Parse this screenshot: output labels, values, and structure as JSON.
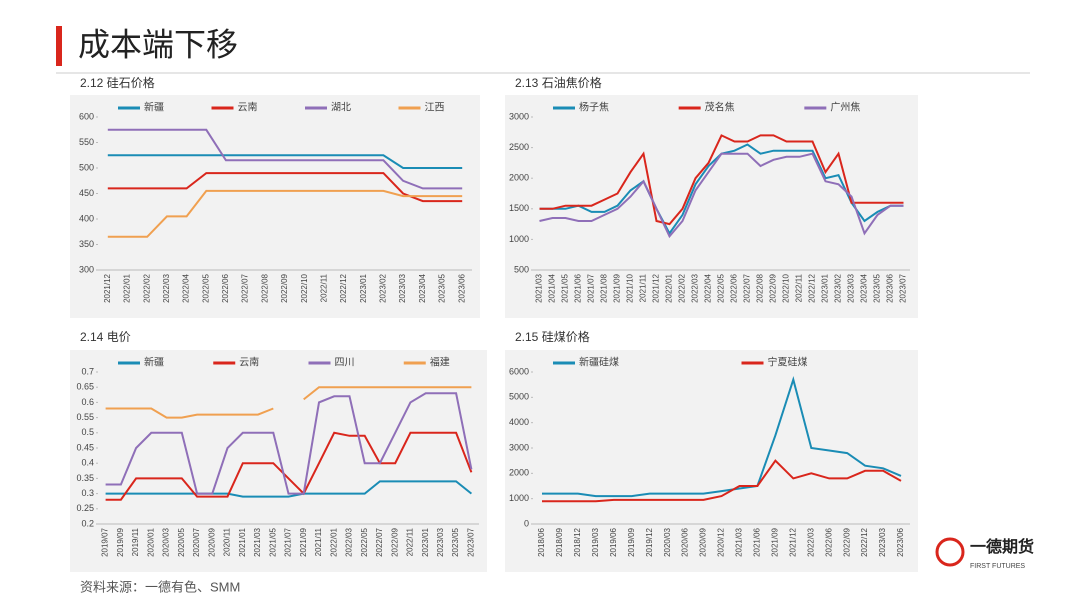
{
  "header": {
    "title": "成本端下移"
  },
  "source": "资料来源：一德有色、SMM",
  "logo": {
    "name": "一德期货",
    "english": "FIRST FUTURES"
  },
  "chart_data": [
    {
      "type": "line",
      "title": "2.12 硅石价格",
      "categories": [
        "2021/12",
        "2022/01",
        "2022/02",
        "2022/03",
        "2022/04",
        "2022/05",
        "2022/06",
        "2022/07",
        "2022/08",
        "2022/09",
        "2022/10",
        "2022/11",
        "2022/12",
        "2023/01",
        "2023/02",
        "2023/03",
        "2023/04",
        "2023/05",
        "2023/06"
      ],
      "ylim": [
        300,
        600
      ],
      "yticks": [
        300,
        350,
        400,
        450,
        500,
        550,
        600
      ],
      "series": [
        {
          "name": "新疆",
          "color": "#1a8cb5",
          "values": [
            525,
            525,
            525,
            525,
            525,
            525,
            525,
            525,
            525,
            525,
            525,
            525,
            525,
            525,
            525,
            500,
            500,
            500,
            500
          ]
        },
        {
          "name": "云南",
          "color": "#d9261c",
          "values": [
            460,
            460,
            460,
            460,
            460,
            490,
            490,
            490,
            490,
            490,
            490,
            490,
            490,
            490,
            490,
            450,
            435,
            435,
            435
          ]
        },
        {
          "name": "湖北",
          "color": "#8f6fb8",
          "values": [
            575,
            575,
            575,
            575,
            575,
            575,
            515,
            515,
            515,
            515,
            515,
            515,
            515,
            515,
            515,
            475,
            460,
            460,
            460
          ]
        },
        {
          "name": "江西",
          "color": "#f0a050",
          "values": [
            365,
            365,
            365,
            405,
            405,
            455,
            455,
            455,
            455,
            455,
            455,
            455,
            455,
            455,
            455,
            445,
            445,
            445,
            445
          ]
        }
      ]
    },
    {
      "type": "line",
      "title": "2.13 石油焦价格",
      "categories": [
        "2021/03",
        "2021/04",
        "2021/05",
        "2021/06",
        "2021/07",
        "2021/08",
        "2021/09",
        "2021/10",
        "2021/11",
        "2021/12",
        "2022/01",
        "2022/02",
        "2022/03",
        "2022/04",
        "2022/05",
        "2022/06",
        "2022/07",
        "2022/08",
        "2022/09",
        "2022/10",
        "2022/11",
        "2022/12",
        "2023/01",
        "2023/02",
        "2023/03",
        "2023/04",
        "2023/05",
        "2023/06",
        "2023/07"
      ],
      "ylim": [
        500,
        3000
      ],
      "yticks": [
        500,
        1000,
        1500,
        2000,
        2500,
        3000
      ],
      "series": [
        {
          "name": "杨子焦",
          "color": "#1a8cb5",
          "values": [
            1500,
            1500,
            1500,
            1550,
            1450,
            1450,
            1550,
            1800,
            1950,
            1500,
            1100,
            1400,
            1900,
            2200,
            2400,
            2450,
            2550,
            2400,
            2450,
            2450,
            2450,
            2450,
            2000,
            2050,
            1600,
            1300,
            1450,
            1550,
            1550
          ]
        },
        {
          "name": "茂名焦",
          "color": "#d9261c",
          "values": [
            1500,
            1500,
            1550,
            1550,
            1550,
            1650,
            1750,
            2100,
            2400,
            1300,
            1250,
            1500,
            2000,
            2250,
            2700,
            2600,
            2600,
            2700,
            2700,
            2600,
            2600,
            2600,
            2100,
            2400,
            1600,
            1600,
            1600,
            1600,
            1600
          ]
        },
        {
          "name": "广州焦",
          "color": "#8f6fb8",
          "values": [
            1300,
            1350,
            1350,
            1300,
            1300,
            1400,
            1500,
            1700,
            1950,
            1500,
            1050,
            1300,
            1800,
            2100,
            2400,
            2400,
            2400,
            2200,
            2300,
            2350,
            2350,
            2400,
            1950,
            1900,
            1700,
            1100,
            1400,
            1550,
            1550
          ]
        }
      ]
    },
    {
      "type": "line",
      "title": "2.14 电价",
      "categories": [
        "2019/07",
        "2019/09",
        "2019/11",
        "2020/01",
        "2020/03",
        "2020/05",
        "2020/07",
        "2020/09",
        "2020/11",
        "2021/01",
        "2021/03",
        "2021/05",
        "2021/07",
        "2021/09",
        "2021/11",
        "2022/01",
        "2022/03",
        "2022/05",
        "2022/07",
        "2022/09",
        "2022/11",
        "2023/01",
        "2023/03",
        "2023/05",
        "2023/07"
      ],
      "ylim": [
        0.2,
        0.7
      ],
      "yticks": [
        0.2,
        0.25,
        0.3,
        0.35,
        0.4,
        0.45,
        0.5,
        0.55,
        0.6,
        0.65,
        0.7
      ],
      "series": [
        {
          "name": "新疆",
          "color": "#1a8cb5",
          "values": [
            0.3,
            0.3,
            0.3,
            0.3,
            0.3,
            0.3,
            0.3,
            0.3,
            0.3,
            0.29,
            0.29,
            0.29,
            0.29,
            0.3,
            0.3,
            0.3,
            0.3,
            0.3,
            0.34,
            0.34,
            0.34,
            0.34,
            0.34,
            0.34,
            0.3
          ]
        },
        {
          "name": "云南",
          "color": "#d9261c",
          "values": [
            0.28,
            0.28,
            0.35,
            0.35,
            0.35,
            0.35,
            0.29,
            0.29,
            0.29,
            0.4,
            0.4,
            0.4,
            0.35,
            0.3,
            0.4,
            0.5,
            0.49,
            0.49,
            0.4,
            0.4,
            0.5,
            0.5,
            0.5,
            0.5,
            0.37
          ]
        },
        {
          "name": "四川",
          "color": "#8f6fb8",
          "values": [
            0.33,
            0.33,
            0.45,
            0.5,
            0.5,
            0.5,
            0.3,
            0.3,
            0.45,
            0.5,
            0.5,
            0.5,
            0.3,
            0.3,
            0.6,
            0.62,
            0.62,
            0.4,
            0.4,
            0.5,
            0.6,
            0.63,
            0.63,
            0.63,
            0.38
          ]
        },
        {
          "name": "福建",
          "color": "#f0a050",
          "values": [
            0.58,
            0.58,
            0.58,
            0.58,
            0.55,
            0.55,
            0.56,
            0.56,
            0.56,
            0.56,
            0.56,
            0.58,
            null,
            0.61,
            0.65,
            0.65,
            0.65,
            0.65,
            0.65,
            0.65,
            0.65,
            0.65,
            0.65,
            0.65,
            0.65
          ]
        }
      ]
    },
    {
      "type": "line",
      "title": "2.15 硅煤价格",
      "categories": [
        "2018/06",
        "2018/09",
        "2018/12",
        "2019/03",
        "2019/06",
        "2019/09",
        "2019/12",
        "2020/03",
        "2020/06",
        "2020/09",
        "2020/12",
        "2021/03",
        "2021/06",
        "2021/09",
        "2021/12",
        "2022/03",
        "2022/06",
        "2022/09",
        "2022/12",
        "2023/03",
        "2023/06"
      ],
      "ylim": [
        0,
        6000
      ],
      "yticks": [
        0,
        1000,
        2000,
        3000,
        4000,
        5000,
        6000
      ],
      "series": [
        {
          "name": "新疆硅煤",
          "color": "#1a8cb5",
          "values": [
            1200,
            1200,
            1200,
            1100,
            1100,
            1100,
            1200,
            1200,
            1200,
            1200,
            1300,
            1400,
            1500,
            3500,
            5700,
            3000,
            2900,
            2800,
            2300,
            2200,
            1900
          ]
        },
        {
          "name": "宁夏硅煤",
          "color": "#d9261c",
          "values": [
            900,
            900,
            900,
            900,
            950,
            950,
            950,
            950,
            950,
            950,
            1100,
            1500,
            1500,
            2500,
            1800,
            2000,
            1800,
            1800,
            2100,
            2100,
            1700
          ]
        }
      ]
    }
  ]
}
